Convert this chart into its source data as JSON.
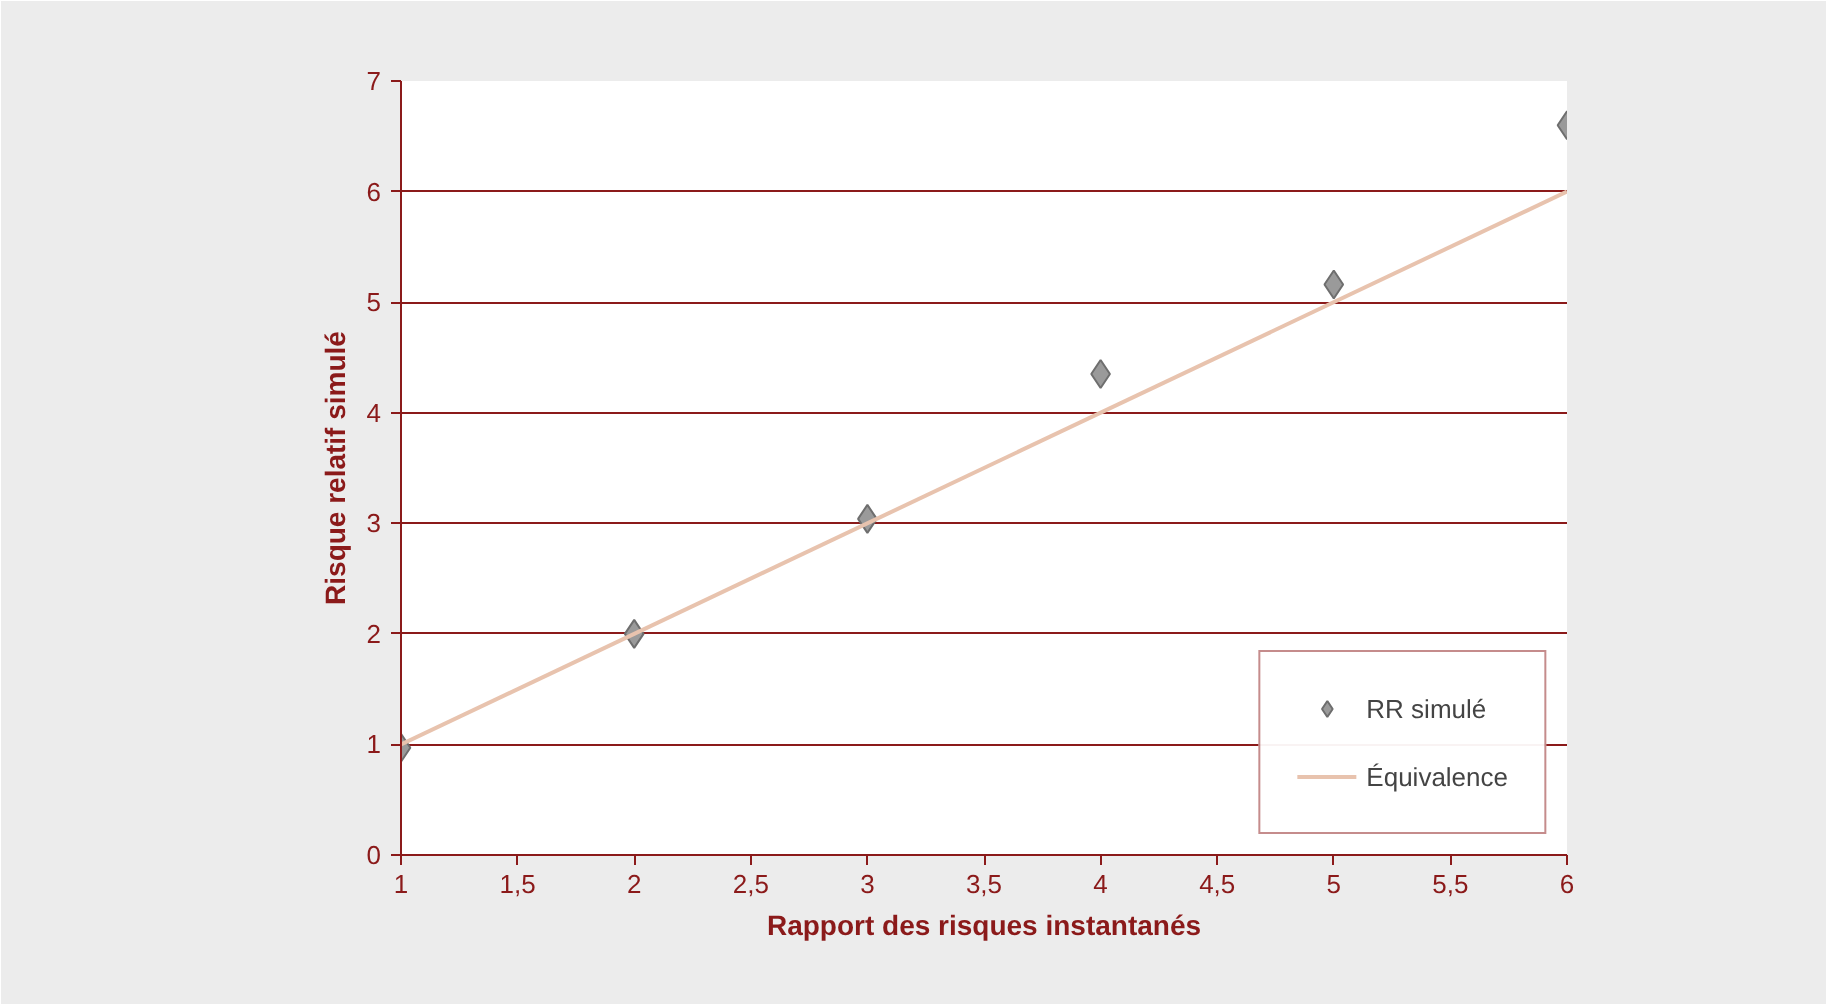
{
  "chart_data": {
    "type": "scatter",
    "xlabel": "Rapport des risques instantanés",
    "ylabel": "Risque relatif simulé",
    "x": [
      1,
      2,
      3,
      4,
      5,
      6
    ],
    "series": [
      {
        "name": "RR simulé",
        "color": "#9a9a9a",
        "marker": "diamond",
        "values": [
          0.97,
          2.0,
          3.04,
          4.35,
          5.16,
          6.6
        ]
      },
      {
        "name": "Équivalence",
        "type": "line",
        "color": "#e8c3ae",
        "line_style": "solid",
        "x": [
          1,
          6
        ],
        "values": [
          1,
          6
        ]
      }
    ],
    "xlim": [
      1,
      6
    ],
    "ylim": [
      0,
      7
    ],
    "xticks": [
      1,
      {
        "value": 1.5,
        "label": "1,5"
      },
      2,
      {
        "value": 2.5,
        "label": "2,5"
      },
      3,
      {
        "value": 3.5,
        "label": "3,5"
      },
      4,
      {
        "value": 4.5,
        "label": "4,5"
      },
      5,
      {
        "value": 5.5,
        "label": "5,5"
      },
      6
    ],
    "yticks": [
      0,
      1,
      2,
      3,
      4,
      5,
      6,
      7
    ],
    "grid": "y",
    "legend": "bottom right"
  }
}
